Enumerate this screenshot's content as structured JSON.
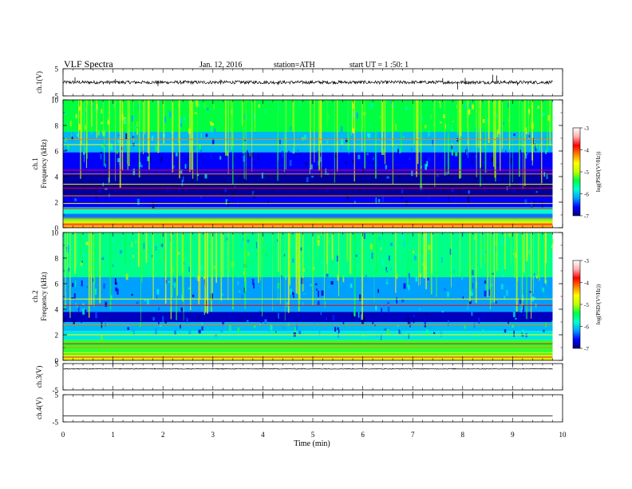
{
  "header": {
    "title": "VLF Spectra",
    "date": "Jan. 12, 2016",
    "station": "station=ATH",
    "start": "start UT = 1 :50: 1"
  },
  "chart_data": {
    "type": "heatmap",
    "x_axis": {
      "label": "Time (min)",
      "range": [
        0,
        10
      ],
      "ticks": [
        "0",
        "1",
        "2",
        "3",
        "4",
        "5",
        "6",
        "7",
        "8",
        "9",
        "10"
      ]
    },
    "data_end_min": 9.8,
    "panels": [
      {
        "id": "ch1-waveform",
        "kind": "waveform",
        "ylabel": "ch.1(V)",
        "ylim": [
          -5,
          5
        ],
        "tick_labels": [
          "5",
          "-5"
        ],
        "baseline": 0,
        "noise_amplitude": 0.6,
        "spikes": [
          {
            "t": 0.24,
            "v": 1.8
          },
          {
            "t": 1.05,
            "v": 1.2
          },
          {
            "t": 1.9,
            "v": -1.4
          },
          {
            "t": 3.15,
            "v": 1.0
          },
          {
            "t": 4.3,
            "v": -1.0
          },
          {
            "t": 7.6,
            "v": 1.5
          },
          {
            "t": 7.9,
            "v": -2.6
          },
          {
            "t": 8.05,
            "v": 1.6
          },
          {
            "t": 8.6,
            "v": 2.8
          },
          {
            "t": 8.68,
            "v": 2.5
          },
          {
            "t": 9.1,
            "v": -1.2
          }
        ]
      },
      {
        "id": "ch1-spectrogram",
        "kind": "spectrogram",
        "ylabel": "ch.1",
        "ylabel2": "Frequency (kHz)",
        "ylim": [
          0,
          10
        ],
        "ticks": [
          "0",
          "2",
          "4",
          "6",
          "8",
          "10"
        ],
        "bands": [
          {
            "f0": 0.0,
            "f1": 0.35,
            "level": -4.2
          },
          {
            "f0": 0.35,
            "f1": 0.7,
            "level": -5.2
          },
          {
            "f0": 0.7,
            "f1": 1.1,
            "level": -6.3
          },
          {
            "f0": 1.1,
            "f1": 1.6,
            "level": -5.8
          },
          {
            "f0": 1.6,
            "f1": 2.4,
            "level": -6.6
          },
          {
            "f0": 2.4,
            "f1": 4.2,
            "level": -6.9
          },
          {
            "f0": 4.2,
            "f1": 5.9,
            "level": -6.6
          },
          {
            "f0": 5.9,
            "f1": 7.5,
            "level": -6.1
          },
          {
            "f0": 7.5,
            "f1": 10.0,
            "level": -5.4
          }
        ],
        "lines_khz": [
          0.5,
          0.75,
          1.5,
          1.9,
          2.5,
          3.1,
          3.4,
          4.2,
          4.5,
          6.5,
          6.9
        ]
      },
      {
        "id": "ch2-spectrogram",
        "kind": "spectrogram",
        "ylabel": "ch.2",
        "ylabel2": "Frequency (kHz)",
        "ylim": [
          0,
          10
        ],
        "ticks": [
          "0",
          "2",
          "4",
          "6",
          "8",
          "10"
        ],
        "bands": [
          {
            "f0": 0.0,
            "f1": 0.35,
            "level": -5.0
          },
          {
            "f0": 0.35,
            "f1": 1.6,
            "level": -5.3
          },
          {
            "f0": 1.6,
            "f1": 2.3,
            "level": -5.9
          },
          {
            "f0": 2.3,
            "f1": 3.0,
            "level": -6.1
          },
          {
            "f0": 3.0,
            "f1": 3.8,
            "level": -6.8
          },
          {
            "f0": 3.8,
            "f1": 5.0,
            "level": -6.2
          },
          {
            "f0": 5.0,
            "f1": 6.5,
            "level": -6.2
          },
          {
            "f0": 6.5,
            "f1": 10.0,
            "level": -5.6
          }
        ],
        "lines_khz": [
          0.6,
          1.0,
          1.3,
          2.0,
          2.8,
          4.3,
          4.8
        ]
      },
      {
        "id": "ch3-waveform",
        "kind": "waveform",
        "ylabel": "ch.3(V)",
        "ylim": [
          -5,
          5
        ],
        "tick_labels": [
          "5",
          "-5"
        ],
        "baseline": 3.0,
        "noise_amplitude": 0.15,
        "spikes": []
      },
      {
        "id": "ch4-waveform",
        "kind": "waveform",
        "ylabel": "ch.4(V)",
        "ylim": [
          -5,
          5
        ],
        "tick_labels": [
          "5",
          "-5"
        ],
        "baseline": -2.8,
        "noise_amplitude": 0.0,
        "spikes": []
      }
    ],
    "colorbar": {
      "label": "log(PSD/(V²/Hz))",
      "range": [
        -7,
        -3
      ],
      "ticks": [
        "-3",
        "-4",
        "-5",
        "-6",
        "-7"
      ],
      "colors": [
        "#00007f",
        "#0000ff",
        "#00a0ff",
        "#00ffd0",
        "#00ff40",
        "#bfff00",
        "#ffff00",
        "#ff8000",
        "#ff0000",
        "#ffb0b0",
        "#ffffff"
      ]
    }
  }
}
